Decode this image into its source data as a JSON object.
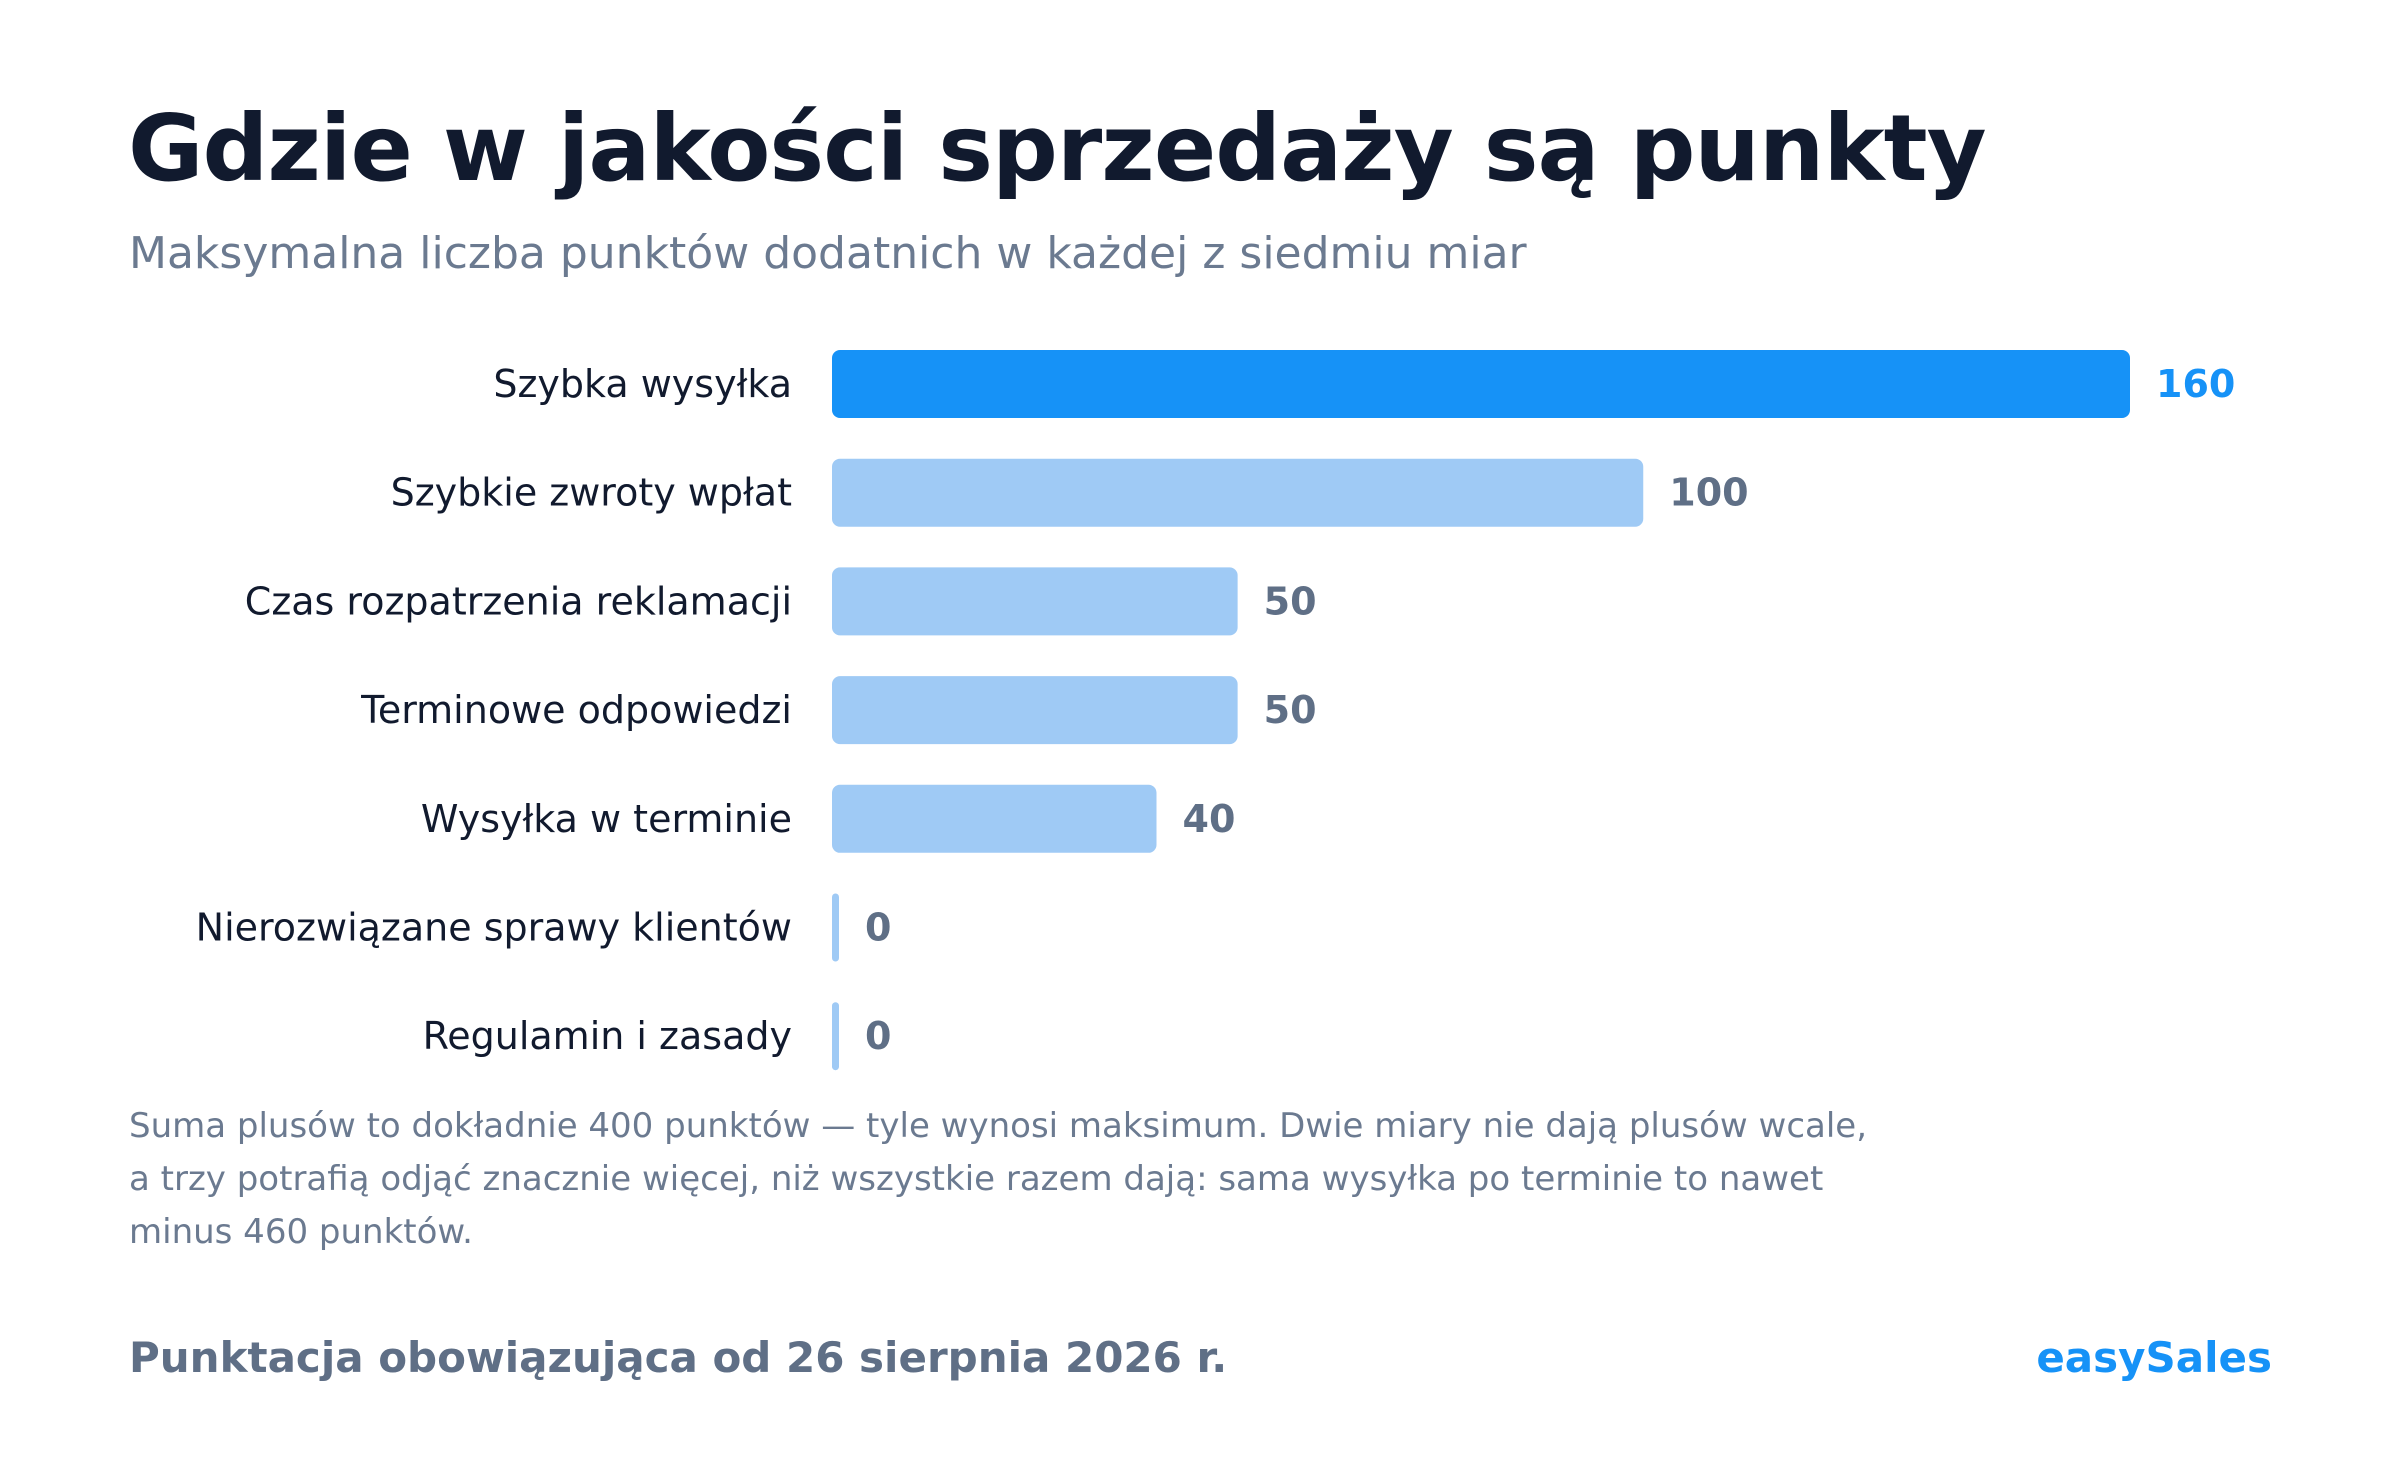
{
  "title": "Gdzie w jakości sprzedaży są punkty",
  "subtitle": "Maksymalna liczba punktów dodatnich w każdej z siedmiu miar",
  "note": "Suma plusów to dokładnie 400 punktów — tyle wynosi maksimum. Dwie miary nie dają plusów wcale, a trzy potrafią odjąć znacznie więcej, niż wszystkie razem dają: sama wysyłka po terminie to nawet minus 460 punktów.",
  "footer": {
    "left": "Punktacja obowiązująca od 26 sierpnia 2026 r.",
    "brand": "easySales"
  },
  "colors": {
    "highlight": "#1692f7",
    "bar": "#9fcaf5",
    "value_label": "#5f6f86",
    "highlight_label": "#1692f7"
  },
  "chart_data": {
    "type": "bar",
    "orientation": "horizontal",
    "categories": [
      "Szybka wysyłka",
      "Szybkie zwroty wpłat",
      "Czas rozpatrzenia reklamacji",
      "Terminowe odpowiedzi",
      "Wysyłka w terminie",
      "Nierozwiązane sprawy klientów",
      "Regulamin i zasady"
    ],
    "values": [
      160,
      100,
      50,
      50,
      40,
      0,
      0
    ],
    "highlight_index": 0,
    "xlim": [
      0,
      160
    ],
    "grid": false,
    "legend": "none"
  }
}
